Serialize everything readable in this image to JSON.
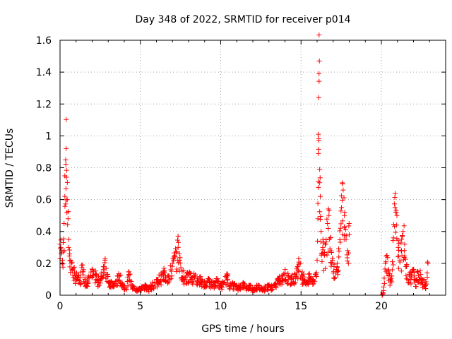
{
  "chart_data": {
    "type": "scatter",
    "title": "Day 348 of 2022, SRMTID for receiver p014",
    "xlabel": "GPS time / hours",
    "ylabel": "SRMTID / TECUs",
    "xlim": [
      0,
      24
    ],
    "ylim": [
      0,
      1.6
    ],
    "xticks": [
      0,
      5,
      10,
      15,
      20
    ],
    "xtick_labels": [
      "0",
      "5",
      "10",
      "15",
      "20"
    ],
    "yticks": [
      0,
      0.2,
      0.4,
      0.6,
      0.8,
      1.0,
      1.2,
      1.4,
      1.6
    ],
    "ytick_labels": [
      "0",
      "0.2",
      "0.4",
      "0.6",
      "0.8",
      "1",
      "1.2",
      "1.4",
      "1.6"
    ],
    "grid": true,
    "marker": "+",
    "marker_color": "#ff0000",
    "series": [
      {
        "name": "SRMTID",
        "points": [
          [
            0.0,
            0.32
          ],
          [
            0.05,
            0.3
          ],
          [
            0.1,
            0.27
          ],
          [
            0.15,
            0.22
          ],
          [
            0.2,
            0.33
          ],
          [
            0.25,
            0.45
          ],
          [
            0.3,
            0.62
          ],
          [
            0.35,
            0.85
          ],
          [
            0.38,
            0.92
          ],
          [
            0.4,
            0.74
          ],
          [
            0.45,
            0.6
          ],
          [
            0.5,
            0.48
          ],
          [
            0.55,
            0.35
          ],
          [
            0.6,
            0.26
          ],
          [
            0.7,
            0.2
          ],
          [
            0.8,
            0.16
          ],
          [
            0.9,
            0.14
          ],
          [
            1.0,
            0.12
          ],
          [
            1.1,
            0.1
          ],
          [
            1.25,
            0.11
          ],
          [
            1.4,
            0.19
          ],
          [
            1.55,
            0.1
          ],
          [
            1.7,
            0.09
          ],
          [
            1.9,
            0.12
          ],
          [
            2.1,
            0.15
          ],
          [
            2.3,
            0.1
          ],
          [
            2.5,
            0.09
          ],
          [
            2.7,
            0.18
          ],
          [
            2.8,
            0.22
          ],
          [
            2.95,
            0.13
          ],
          [
            3.1,
            0.08
          ],
          [
            3.3,
            0.06
          ],
          [
            3.5,
            0.09
          ],
          [
            3.7,
            0.12
          ],
          [
            3.9,
            0.07
          ],
          [
            4.1,
            0.05
          ],
          [
            4.3,
            0.13
          ],
          [
            4.5,
            0.06
          ],
          [
            4.7,
            0.03
          ],
          [
            4.9,
            0.04
          ],
          [
            5.1,
            0.05
          ],
          [
            5.3,
            0.06
          ],
          [
            5.5,
            0.04
          ],
          [
            5.7,
            0.06
          ],
          [
            5.9,
            0.08
          ],
          [
            6.1,
            0.1
          ],
          [
            6.3,
            0.12
          ],
          [
            6.5,
            0.14
          ],
          [
            6.7,
            0.12
          ],
          [
            6.9,
            0.16
          ],
          [
            7.0,
            0.2
          ],
          [
            7.15,
            0.24
          ],
          [
            7.25,
            0.27
          ],
          [
            7.35,
            0.3
          ],
          [
            7.45,
            0.22
          ],
          [
            7.6,
            0.15
          ],
          [
            7.8,
            0.11
          ],
          [
            8.0,
            0.13
          ],
          [
            8.2,
            0.1
          ],
          [
            8.4,
            0.12
          ],
          [
            8.6,
            0.09
          ],
          [
            8.8,
            0.1
          ],
          [
            9.0,
            0.08
          ],
          [
            9.2,
            0.09
          ],
          [
            9.4,
            0.07
          ],
          [
            9.6,
            0.08
          ],
          [
            9.8,
            0.09
          ],
          [
            10.0,
            0.06
          ],
          [
            10.2,
            0.08
          ],
          [
            10.4,
            0.12
          ],
          [
            10.6,
            0.06
          ],
          [
            10.8,
            0.07
          ],
          [
            11.0,
            0.05
          ],
          [
            11.2,
            0.06
          ],
          [
            11.4,
            0.07
          ],
          [
            11.6,
            0.05
          ],
          [
            11.8,
            0.06
          ],
          [
            12.0,
            0.04
          ],
          [
            12.2,
            0.05
          ],
          [
            12.4,
            0.06
          ],
          [
            12.6,
            0.04
          ],
          [
            12.8,
            0.05
          ],
          [
            13.0,
            0.06
          ],
          [
            13.2,
            0.05
          ],
          [
            13.4,
            0.07
          ],
          [
            13.6,
            0.09
          ],
          [
            13.8,
            0.12
          ],
          [
            14.0,
            0.14
          ],
          [
            14.2,
            0.11
          ],
          [
            14.4,
            0.1
          ],
          [
            14.6,
            0.13
          ],
          [
            14.8,
            0.18
          ],
          [
            14.95,
            0.2
          ],
          [
            15.1,
            0.12
          ],
          [
            15.3,
            0.09
          ],
          [
            15.5,
            0.11
          ],
          [
            15.7,
            0.1
          ],
          [
            15.9,
            0.13
          ],
          [
            16.0,
            0.22
          ],
          [
            16.05,
            0.48
          ],
          [
            16.08,
            1.01
          ],
          [
            16.1,
            1.24
          ],
          [
            16.12,
            1.39
          ],
          [
            16.14,
            1.47
          ],
          [
            16.16,
            0.79
          ],
          [
            16.2,
            0.62
          ],
          [
            16.25,
            0.4
          ],
          [
            16.35,
            0.3
          ],
          [
            16.45,
            0.25
          ],
          [
            16.55,
            0.32
          ],
          [
            16.65,
            0.45
          ],
          [
            16.75,
            0.53
          ],
          [
            16.85,
            0.36
          ],
          [
            16.95,
            0.22
          ],
          [
            17.05,
            0.18
          ],
          [
            17.15,
            0.14
          ],
          [
            17.25,
            0.2
          ],
          [
            17.35,
            0.24
          ],
          [
            17.45,
            0.42
          ],
          [
            17.52,
            0.55
          ],
          [
            17.58,
            0.7
          ],
          [
            17.62,
            0.66
          ],
          [
            17.7,
            0.5
          ],
          [
            17.8,
            0.35
          ],
          [
            17.9,
            0.28
          ],
          [
            18.0,
            0.38
          ],
          [
            20.05,
            0.0
          ],
          [
            20.1,
            0.01
          ],
          [
            20.25,
            0.2
          ],
          [
            20.35,
            0.25
          ],
          [
            20.45,
            0.16
          ],
          [
            20.55,
            0.1
          ],
          [
            20.65,
            0.12
          ],
          [
            20.75,
            0.36
          ],
          [
            20.85,
            0.55
          ],
          [
            20.9,
            0.52
          ],
          [
            20.95,
            0.44
          ],
          [
            21.05,
            0.3
          ],
          [
            21.15,
            0.22
          ],
          [
            21.25,
            0.28
          ],
          [
            21.35,
            0.4
          ],
          [
            21.45,
            0.32
          ],
          [
            21.55,
            0.18
          ],
          [
            21.65,
            0.1
          ],
          [
            21.75,
            0.14
          ],
          [
            21.85,
            0.12
          ],
          [
            21.95,
            0.16
          ],
          [
            22.05,
            0.12
          ],
          [
            22.15,
            0.09
          ],
          [
            22.25,
            0.15
          ],
          [
            22.35,
            0.11
          ],
          [
            22.45,
            0.13
          ],
          [
            22.55,
            0.08
          ],
          [
            22.65,
            0.1
          ],
          [
            22.75,
            0.06
          ],
          [
            22.85,
            0.14
          ],
          [
            22.9,
            0.2
          ]
        ]
      }
    ]
  }
}
